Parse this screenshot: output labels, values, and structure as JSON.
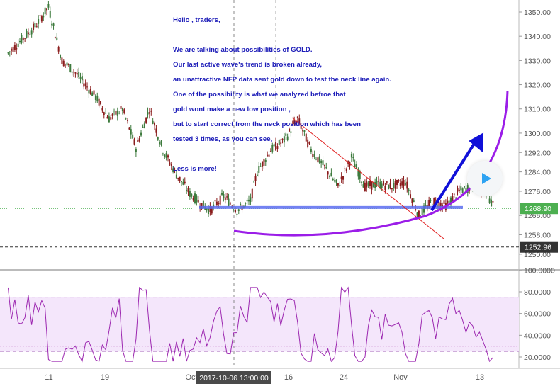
{
  "annotation": {
    "greeting": "Hello , traders,",
    "lines": [
      "We are talking about possibilities of GOLD.",
      "Our last active wave's trend is broken already,",
      "an unattractive NFP data sent gold down to test the neck line again.",
      "One of the possibility is what we analyzed befroe that",
      "gold wont make a new low position ,",
      "but to start correct from the neck position which has been",
      "tested 3 times, as you can see,"
    ],
    "closing": "Less is more!"
  },
  "colors": {
    "candle_up": "#3d7a3d",
    "candle_down": "#8a1c1c",
    "neckline": "#5a6cf0",
    "arc": "#9b1de8",
    "arrow": "#1010d8",
    "trendline": "#e02020",
    "rsi": "#9c27b0",
    "rsi_band": "#f4e6fb",
    "price_tag": "#4caf50",
    "dark_tag": "#333333",
    "play": "#2ea3f2"
  },
  "icons": {
    "play": "play-icon"
  },
  "chart_data": [
    {
      "type": "candlestick",
      "symbol": "GOLD",
      "y_ticks": [
        1350.0,
        1340.0,
        1330.0,
        1320.0,
        1310.0,
        1300.0,
        1292.0,
        1284.0,
        1276.0,
        1266.0,
        1258.0,
        1250.0
      ],
      "y_tick_labels": [
        "1350.00",
        "1340.00",
        "1330.00",
        "1320.00",
        "1310.00",
        "1300.00",
        "1292.00",
        "1284.00",
        "1276.00",
        "1266.00",
        "1258.00",
        "1250.00"
      ],
      "ylim": [
        1248,
        1354
      ],
      "x_tick_labels": [
        "11",
        "19",
        "Oct",
        "16",
        "24",
        "Nov",
        "13"
      ],
      "crosshair_label": "2017-10-06 13:00:00",
      "last_price": "1268.90",
      "level_label": "1252.96",
      "neckline": 1269.3,
      "trend_start": "high ~1306 mid-Oct",
      "grid": false,
      "legend": "none"
    },
    {
      "type": "line",
      "indicator": "RSI",
      "y_tick_labels": [
        "100.0000",
        "80.0000",
        "60.0000",
        "40.0000",
        "20.0000"
      ],
      "ylim": [
        10,
        100
      ],
      "band": [
        25,
        75
      ],
      "level_line": 30
    }
  ]
}
